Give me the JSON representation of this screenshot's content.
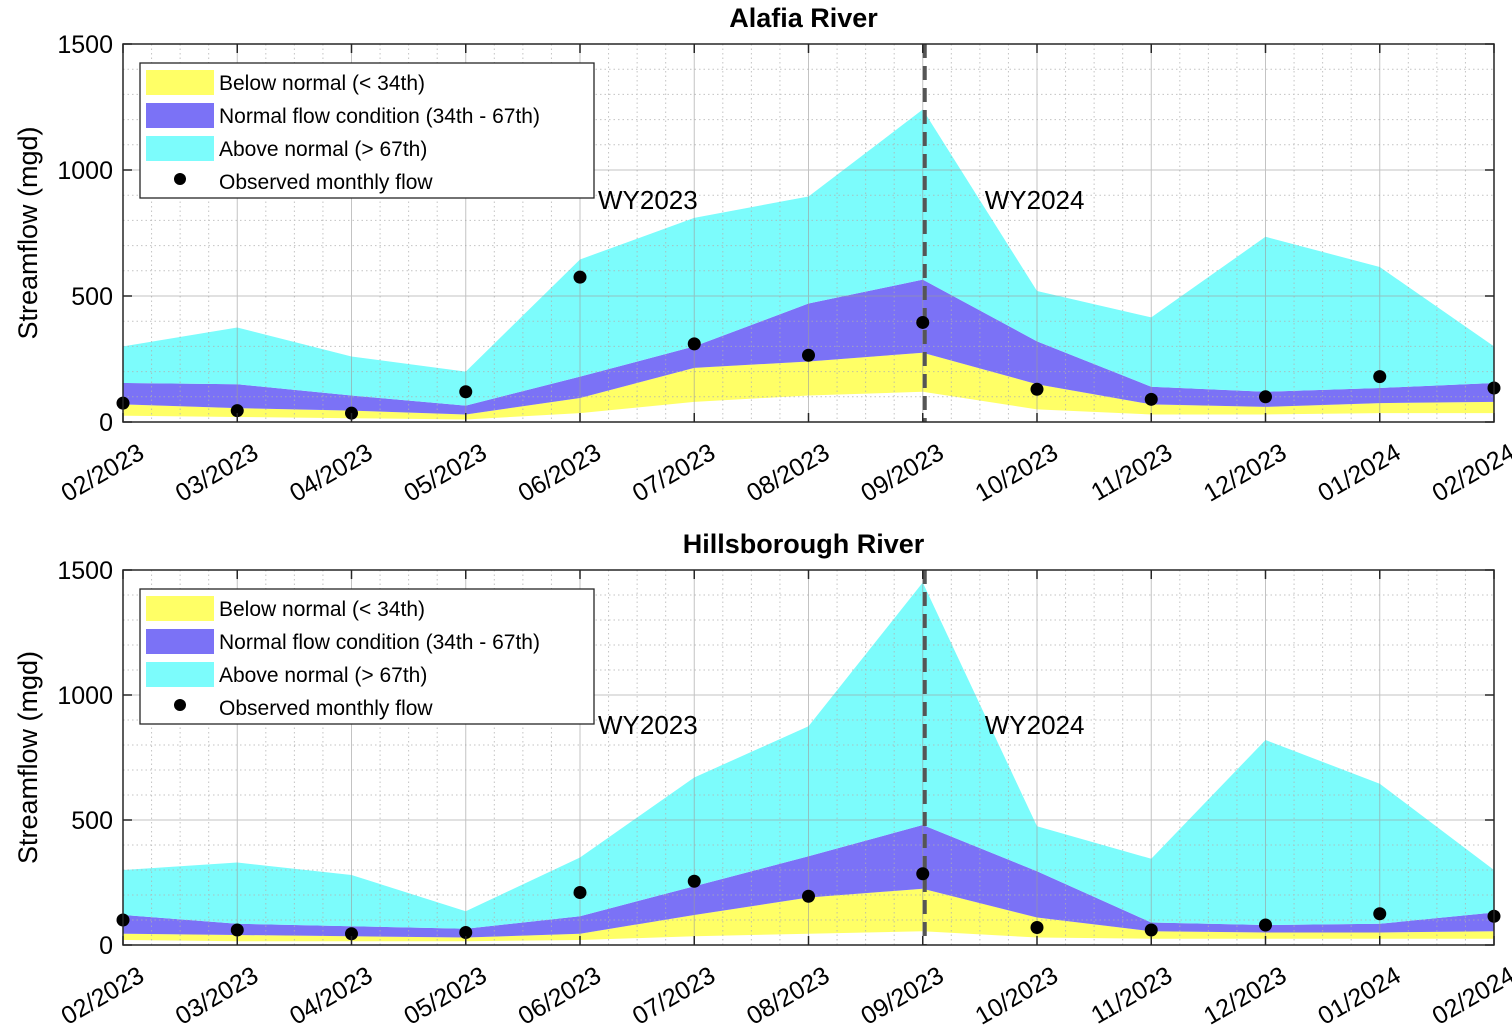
{
  "chart_data": [
    {
      "type": "area",
      "title": "Alafia River",
      "ylabel": "Streamflow (mgd)",
      "xlabel": "",
      "ylim": [
        0,
        1500
      ],
      "yticks": [
        0,
        500,
        1000,
        1500
      ],
      "grid": true,
      "legend_position": "top-left",
      "categories": [
        "02/2023",
        "03/2023",
        "04/2023",
        "05/2023",
        "06/2023",
        "07/2023",
        "08/2023",
        "09/2023",
        "10/2023",
        "11/2023",
        "12/2023",
        "01/2024",
        "02/2024"
      ],
      "series": [
        {
          "name": "Below normal (< 34th)",
          "color": "#ffff66",
          "lower": [
            25,
            20,
            15,
            10,
            35,
            80,
            105,
            120,
            50,
            30,
            30,
            35,
            35
          ],
          "upper": [
            70,
            55,
            45,
            30,
            95,
            215,
            240,
            275,
            150,
            70,
            60,
            75,
            80
          ]
        },
        {
          "name": "Normal flow condition (34th - 67th)",
          "color": "#7b72f6",
          "lower": [
            70,
            55,
            45,
            30,
            95,
            215,
            240,
            275,
            150,
            70,
            60,
            75,
            80
          ],
          "upper": [
            155,
            150,
            105,
            65,
            180,
            300,
            470,
            565,
            320,
            140,
            120,
            135,
            155
          ]
        },
        {
          "name": "Above normal (> 67th)",
          "color": "#7cfcfc",
          "lower": [
            155,
            150,
            105,
            65,
            180,
            300,
            470,
            565,
            320,
            140,
            120,
            135,
            155
          ],
          "upper": [
            300,
            375,
            260,
            200,
            645,
            810,
            895,
            1240,
            520,
            415,
            735,
            615,
            300
          ]
        },
        {
          "name": "Observed monthly flow",
          "color": "#000000",
          "values": [
            75,
            45,
            35,
            120,
            575,
            310,
            265,
            395,
            130,
            90,
            100,
            180,
            135
          ]
        }
      ],
      "annotations": [
        {
          "label": "WY2023",
          "x_after": "02/2023"
        },
        {
          "label": "WY2024",
          "x_after": "09/2023"
        }
      ],
      "divider_at": "09/2023"
    },
    {
      "type": "area",
      "title": "Hillsborough River",
      "ylabel": "Streamflow (mgd)",
      "xlabel": "",
      "ylim": [
        0,
        1500
      ],
      "yticks": [
        0,
        500,
        1000,
        1500
      ],
      "grid": true,
      "legend_position": "top-left",
      "categories": [
        "02/2023",
        "03/2023",
        "04/2023",
        "05/2023",
        "06/2023",
        "07/2023",
        "08/2023",
        "09/2023",
        "10/2023",
        "11/2023",
        "12/2023",
        "01/2024",
        "02/2024"
      ],
      "series": [
        {
          "name": "Below normal (< 34th)",
          "color": "#ffff66",
          "lower": [
            20,
            15,
            15,
            15,
            20,
            35,
            45,
            55,
            30,
            25,
            25,
            25,
            25
          ],
          "upper": [
            45,
            40,
            35,
            30,
            45,
            120,
            190,
            225,
            110,
            55,
            50,
            50,
            55
          ]
        },
        {
          "name": "Normal flow condition (34th - 67th)",
          "color": "#7b72f6",
          "lower": [
            45,
            40,
            35,
            30,
            45,
            120,
            190,
            225,
            110,
            55,
            50,
            50,
            55
          ],
          "upper": [
            120,
            85,
            75,
            65,
            115,
            235,
            355,
            480,
            295,
            90,
            80,
            85,
            130
          ]
        },
        {
          "name": "Above normal (> 67th)",
          "color": "#7cfcfc",
          "lower": [
            120,
            85,
            75,
            65,
            115,
            235,
            355,
            480,
            295,
            90,
            80,
            85,
            130
          ],
          "upper": [
            300,
            330,
            280,
            135,
            350,
            670,
            875,
            1450,
            475,
            345,
            820,
            645,
            300
          ]
        },
        {
          "name": "Observed monthly flow",
          "color": "#000000",
          "values": [
            100,
            60,
            45,
            50,
            210,
            255,
            195,
            285,
            70,
            60,
            80,
            125,
            115
          ]
        }
      ],
      "annotations": [
        {
          "label": "WY2023",
          "x_after": "02/2023"
        },
        {
          "label": "WY2024",
          "x_after": "09/2023"
        }
      ],
      "divider_at": "09/2023"
    }
  ]
}
